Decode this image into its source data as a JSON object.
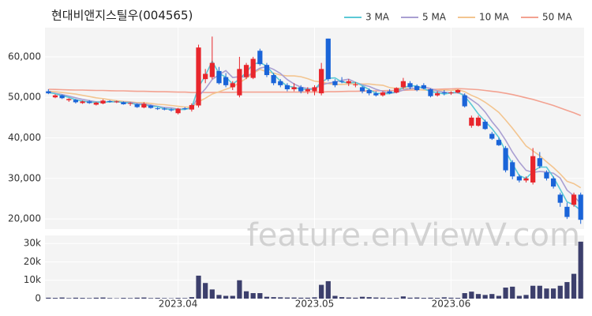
{
  "chart_data": {
    "type": "candlestick",
    "title": "현대비앤지스틸우(004565)",
    "watermark": "feature.enViewV.com",
    "grid": true,
    "legend": "top-right",
    "up_color": "#e8262c",
    "down_color": "#1a64d8",
    "categories": [
      null,
      null,
      null,
      null,
      null,
      null,
      null,
      null,
      null,
      null,
      null,
      null,
      null,
      null,
      null,
      null,
      null,
      null,
      null,
      "2023.04",
      null,
      null,
      null,
      null,
      null,
      null,
      null,
      null,
      null,
      null,
      null,
      null,
      null,
      null,
      null,
      null,
      null,
      null,
      null,
      "2023.05",
      null,
      null,
      null,
      null,
      null,
      null,
      null,
      null,
      null,
      null,
      null,
      null,
      null,
      null,
      null,
      null,
      null,
      null,
      null,
      "2023.06",
      null,
      null,
      null,
      null,
      null,
      null,
      null,
      null,
      null,
      null,
      null,
      null,
      null,
      null,
      null,
      null,
      null,
      null,
      null
    ],
    "open": [
      51500,
      50000,
      50500,
      49300,
      49400,
      48600,
      49000,
      48200,
      48500,
      49100,
      48900,
      48800,
      48400,
      48300,
      47500,
      48000,
      47300,
      47200,
      47000,
      46100,
      47300,
      47000,
      48000,
      54500,
      55000,
      56500,
      55000,
      52500,
      50500,
      55000,
      54800,
      61500,
      58000,
      55500,
      54000,
      53000,
      52000,
      52500,
      51500,
      51500,
      51000,
      64500,
      54000,
      54000,
      53500,
      53000,
      52500,
      51800,
      51000,
      50500,
      51500,
      51200,
      52500,
      53500,
      52800,
      53000,
      52000,
      50500,
      51200,
      51000,
      51200,
      50500,
      43000,
      43000,
      44000,
      41000,
      39500,
      37500,
      34000,
      30500,
      29500,
      29000,
      35000,
      31500,
      30000,
      26000,
      23000,
      23500,
      26000
    ],
    "high": [
      52000,
      50800,
      50700,
      49800,
      49600,
      49200,
      49300,
      48900,
      49500,
      49300,
      49200,
      49000,
      48800,
      48500,
      48800,
      48200,
      47600,
      47500,
      47300,
      47400,
      47600,
      48500,
      63000,
      57000,
      65000,
      57500,
      56000,
      54000,
      60000,
      58500,
      60000,
      62000,
      58500,
      56000,
      54500,
      53500,
      53500,
      53000,
      52500,
      53000,
      58500,
      64500,
      54500,
      55000,
      54500,
      53800,
      52800,
      52200,
      51500,
      51500,
      52000,
      52500,
      54800,
      54000,
      53200,
      53500,
      52200,
      51500,
      51800,
      51500,
      52000,
      51000,
      45500,
      45500,
      44500,
      41500,
      40000,
      38000,
      34500,
      31000,
      30500,
      37500,
      36500,
      32000,
      30500,
      26500,
      24000,
      26500,
      26500
    ],
    "low": [
      50800,
      49800,
      49600,
      48900,
      48500,
      48400,
      48400,
      48000,
      48300,
      48700,
      48600,
      48200,
      47900,
      47400,
      47300,
      47200,
      46900,
      46800,
      46500,
      45800,
      46900,
      46500,
      47500,
      53500,
      54500,
      53200,
      52500,
      51800,
      50000,
      54500,
      54500,
      57800,
      55000,
      53000,
      52500,
      51500,
      51500,
      51000,
      50800,
      50500,
      50500,
      54000,
      52500,
      53500,
      52800,
      52500,
      51000,
      50500,
      50200,
      50200,
      50800,
      51000,
      52000,
      52000,
      51500,
      52000,
      50000,
      50200,
      50500,
      50600,
      51000,
      47500,
      42500,
      42800,
      42000,
      39500,
      38000,
      31500,
      29800,
      29000,
      29000,
      28500,
      32500,
      29500,
      27500,
      23000,
      20000,
      23000,
      18800
    ],
    "close": [
      51000,
      50500,
      49800,
      49600,
      48800,
      49000,
      48600,
      48700,
      49200,
      48900,
      49000,
      48300,
      48600,
      47600,
      48400,
      47400,
      47200,
      47100,
      46800,
      47200,
      47100,
      48100,
      62300,
      55800,
      58500,
      53500,
      53000,
      53500,
      57000,
      58000,
      59500,
      58200,
      55500,
      53500,
      53000,
      52000,
      52500,
      51500,
      52000,
      52500,
      57000,
      54500,
      53000,
      53800,
      54000,
      53200,
      51500,
      51000,
      50500,
      51200,
      51000,
      52300,
      54000,
      52500,
      51800,
      52200,
      50300,
      51000,
      51000,
      51200,
      51800,
      47800,
      45000,
      45000,
      42200,
      39800,
      38200,
      32000,
      30500,
      29500,
      30000,
      35500,
      33000,
      30000,
      28000,
      24000,
      20500,
      26000,
      19800
    ],
    "series": [
      {
        "name": "3 MA",
        "color": "#5cc9d6",
        "values": [
          51200,
          50900,
          50400,
          50000,
          49400,
          49100,
          48800,
          48800,
          48800,
          48900,
          49000,
          48700,
          48600,
          48200,
          48200,
          47800,
          47700,
          47200,
          47000,
          47000,
          47000,
          47500,
          52500,
          55400,
          58900,
          55900,
          55000,
          53300,
          54500,
          56200,
          58200,
          58600,
          57700,
          55700,
          54000,
          52800,
          52500,
          52000,
          52000,
          52000,
          53800,
          54700,
          54800,
          53800,
          53600,
          53700,
          52900,
          51900,
          51000,
          50900,
          50900,
          51500,
          52400,
          52900,
          52800,
          52200,
          51400,
          51200,
          50800,
          51100,
          51300,
          50300,
          48200,
          45900,
          44100,
          42300,
          40100,
          36700,
          33600,
          30700,
          30000,
          31700,
          32800,
          32800,
          30300,
          27300,
          24200,
          23500,
          22100
        ]
      },
      {
        "name": "5 MA",
        "color": "#a99fd2",
        "values": [
          51300,
          51000,
          50700,
          50300,
          49900,
          49500,
          49200,
          48900,
          48900,
          48900,
          48900,
          48800,
          48800,
          48500,
          48400,
          48100,
          47800,
          47500,
          47400,
          47100,
          47100,
          47300,
          50300,
          52100,
          54400,
          55600,
          56600,
          54900,
          55100,
          55000,
          56200,
          57200,
          57600,
          56900,
          55900,
          54400,
          53300,
          52500,
          52200,
          52100,
          53100,
          53500,
          53800,
          54200,
          54500,
          53700,
          53100,
          52700,
          52000,
          51500,
          51000,
          51200,
          51800,
          52200,
          52300,
          52600,
          52200,
          51600,
          51300,
          51100,
          51100,
          50600,
          49400,
          48200,
          46400,
          44000,
          42000,
          39400,
          36500,
          34000,
          32000,
          31500,
          31700,
          31600,
          31300,
          30100,
          27100,
          25700,
          23700
        ]
      },
      {
        "name": "10 MA",
        "color": "#f3c590",
        "values": [
          51500,
          51400,
          51200,
          51000,
          50800,
          50500,
          50200,
          49900,
          49700,
          49400,
          49200,
          49000,
          48900,
          48700,
          48700,
          48500,
          48300,
          48200,
          48000,
          47800,
          47600,
          47600,
          48900,
          49800,
          50800,
          51400,
          52000,
          52600,
          53600,
          54700,
          55900,
          56900,
          56300,
          56000,
          55500,
          55300,
          55300,
          55100,
          54600,
          54000,
          53800,
          53400,
          53200,
          53200,
          53300,
          53400,
          53300,
          53300,
          53100,
          53000,
          52400,
          52200,
          52300,
          52100,
          51900,
          51800,
          51700,
          51700,
          51800,
          51700,
          51900,
          51400,
          50500,
          49800,
          48800,
          47600,
          46300,
          44400,
          42400,
          40200,
          38000,
          36800,
          35600,
          34100,
          32700,
          31100,
          29300,
          28700,
          27700
        ]
      },
      {
        "name": "50 MA",
        "color": "#f3a291",
        "values": [
          52000,
          51950,
          51900,
          51850,
          51800,
          51800,
          51750,
          51700,
          51700,
          51650,
          51600,
          51600,
          51550,
          51500,
          51500,
          51450,
          51400,
          51400,
          51350,
          51300,
          51300,
          51200,
          51200,
          51200,
          51200,
          51250,
          51250,
          51250,
          51300,
          51300,
          51300,
          51300,
          51300,
          51300,
          51300,
          51300,
          51300,
          51300,
          51300,
          51300,
          51300,
          51400,
          51400,
          51450,
          51500,
          51500,
          51550,
          51600,
          51600,
          51650,
          51700,
          51700,
          51750,
          51800,
          51850,
          51900,
          51950,
          52000,
          52050,
          52100,
          52150,
          52100,
          52000,
          51900,
          51700,
          51500,
          51300,
          51000,
          50700,
          50300,
          49900,
          49500,
          49000,
          48500,
          48000,
          47400,
          46800,
          46200,
          45500
        ]
      }
    ],
    "ylim": [
      17500,
      67200
    ],
    "yticks": [
      {
        "value": 20000,
        "label": "20,000"
      },
      {
        "value": 30000,
        "label": "30,000"
      },
      {
        "value": 40000,
        "label": "40,000"
      },
      {
        "value": 50000,
        "label": "50,000"
      },
      {
        "value": 60000,
        "label": "60,000"
      }
    ],
    "volume": {
      "color": "#3c3f6c",
      "values": [
        500,
        400,
        600,
        300,
        500,
        400,
        300,
        500,
        600,
        300,
        200,
        400,
        300,
        500,
        600,
        300,
        400,
        300,
        200,
        400,
        300,
        800,
        12500,
        8500,
        5000,
        2000,
        1500,
        1500,
        10000,
        4000,
        3000,
        3000,
        1000,
        800,
        700,
        600,
        600,
        500,
        500,
        700,
        7500,
        9500,
        1500,
        800,
        600,
        500,
        1000,
        800,
        600,
        500,
        400,
        400,
        1200,
        500,
        600,
        400,
        500,
        400,
        700,
        500,
        400,
        3000,
        3800,
        2500,
        2000,
        2500,
        1500,
        6000,
        6500,
        1500,
        2000,
        7000,
        7000,
        5500,
        5500,
        7000,
        9000,
        13500,
        31000
      ],
      "ylim": [
        0,
        34400
      ],
      "yticks": [
        0,
        {
          "value": 10000,
          "label": "10k"
        },
        {
          "value": 20000,
          "label": "20k"
        },
        {
          "value": 30000,
          "label": "30k"
        }
      ]
    }
  }
}
